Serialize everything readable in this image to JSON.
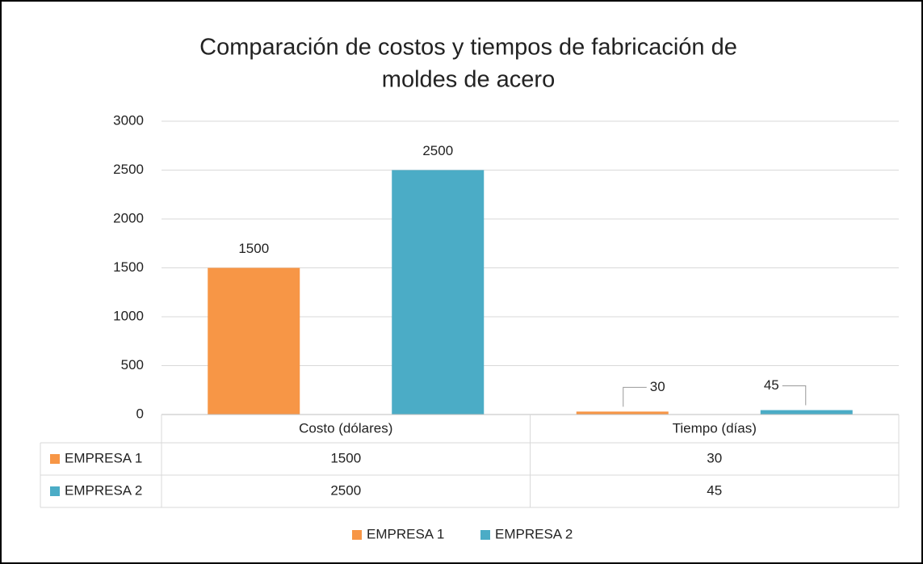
{
  "chart_data": {
    "type": "bar",
    "title": [
      "Comparación de costos y tiempos de fabricación de",
      "moldes de acero"
    ],
    "categories": [
      "Costo (dólares)",
      "Tiempo (días)"
    ],
    "series": [
      {
        "name": "EMPRESA 1",
        "color": "#f79646",
        "values": [
          1500,
          30
        ]
      },
      {
        "name": "EMPRESA 2",
        "color": "#4bacc6",
        "values": [
          2500,
          45
        ]
      }
    ],
    "ylim": [
      0,
      3000
    ],
    "yticks": [
      0,
      500,
      1000,
      1500,
      2000,
      2500,
      3000
    ],
    "grid": true,
    "data_table": true,
    "legend": "bottom"
  }
}
